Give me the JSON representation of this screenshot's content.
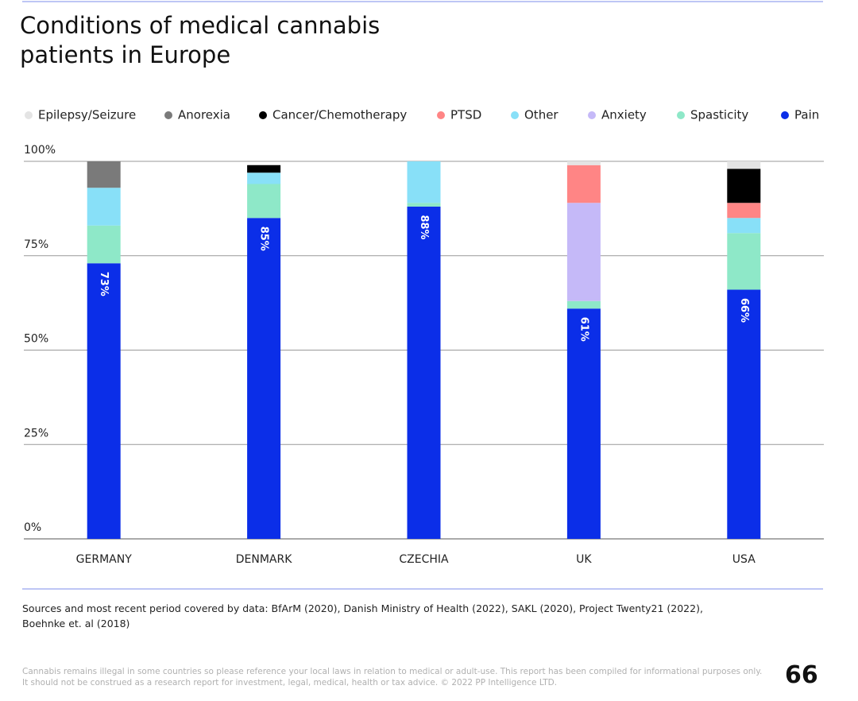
{
  "chart_data": {
    "type": "stacked_bar",
    "title": "Conditions of medical cannabis patients in Europe",
    "categories": [
      "GERMANY",
      "DENMARK",
      "CZECHIA",
      "UK",
      "USA"
    ],
    "series": [
      {
        "name": "Epilepsy/Seizure",
        "color": "#e4e4e4",
        "values": [
          null,
          null,
          null,
          1,
          2
        ]
      },
      {
        "name": "Anorexia",
        "color": "#7a7a7a",
        "values": [
          7,
          null,
          null,
          null,
          null
        ]
      },
      {
        "name": "Cancer/Chemotherapy",
        "color": "#000000",
        "values": [
          null,
          2,
          null,
          null,
          9
        ]
      },
      {
        "name": "PTSD",
        "color": "#ff8585",
        "values": [
          null,
          null,
          null,
          10,
          4
        ]
      },
      {
        "name": "Other",
        "color": "#88e0f8",
        "values": [
          10,
          3,
          11,
          null,
          4
        ]
      },
      {
        "name": "Anxiety",
        "color": "#c5b9f8",
        "values": [
          null,
          null,
          null,
          26,
          null
        ]
      },
      {
        "name": "Spasticity",
        "color": "#8ee8c8",
        "values": [
          10,
          9,
          1,
          2,
          15
        ]
      },
      {
        "name": "Pain",
        "color": "#0b2ee8",
        "values": [
          73,
          85,
          88,
          61,
          66
        ],
        "value_labels": [
          "73%",
          "85%",
          "88%",
          "61%",
          "66%"
        ]
      }
    ],
    "ylim": [
      0,
      100
    ],
    "yticks": [
      {
        "value": 0,
        "label": "0%"
      },
      {
        "value": 25,
        "label": "25%"
      },
      {
        "value": 50,
        "label": "50%"
      },
      {
        "value": 75,
        "label": "75%"
      },
      {
        "value": 100,
        "label": "100%"
      }
    ],
    "grid": true,
    "legend": "top",
    "source": "Sources and most recent period covered by data: BfArM (2020), Danish Ministry of Health (2022), SAKL (2020), Project Twenty21 (2022), Boehnke et. al (2018)"
  },
  "footer": {
    "disclaimer": "Cannabis remains illegal in some countries so please reference your local laws in relation to medical or adult-use. This report has been compiled for informational purposes only. It should not be construed as a research report for investment, legal, medical, health or tax advice. © 2022 PP Intelligence LTD.",
    "page_number": 66
  }
}
